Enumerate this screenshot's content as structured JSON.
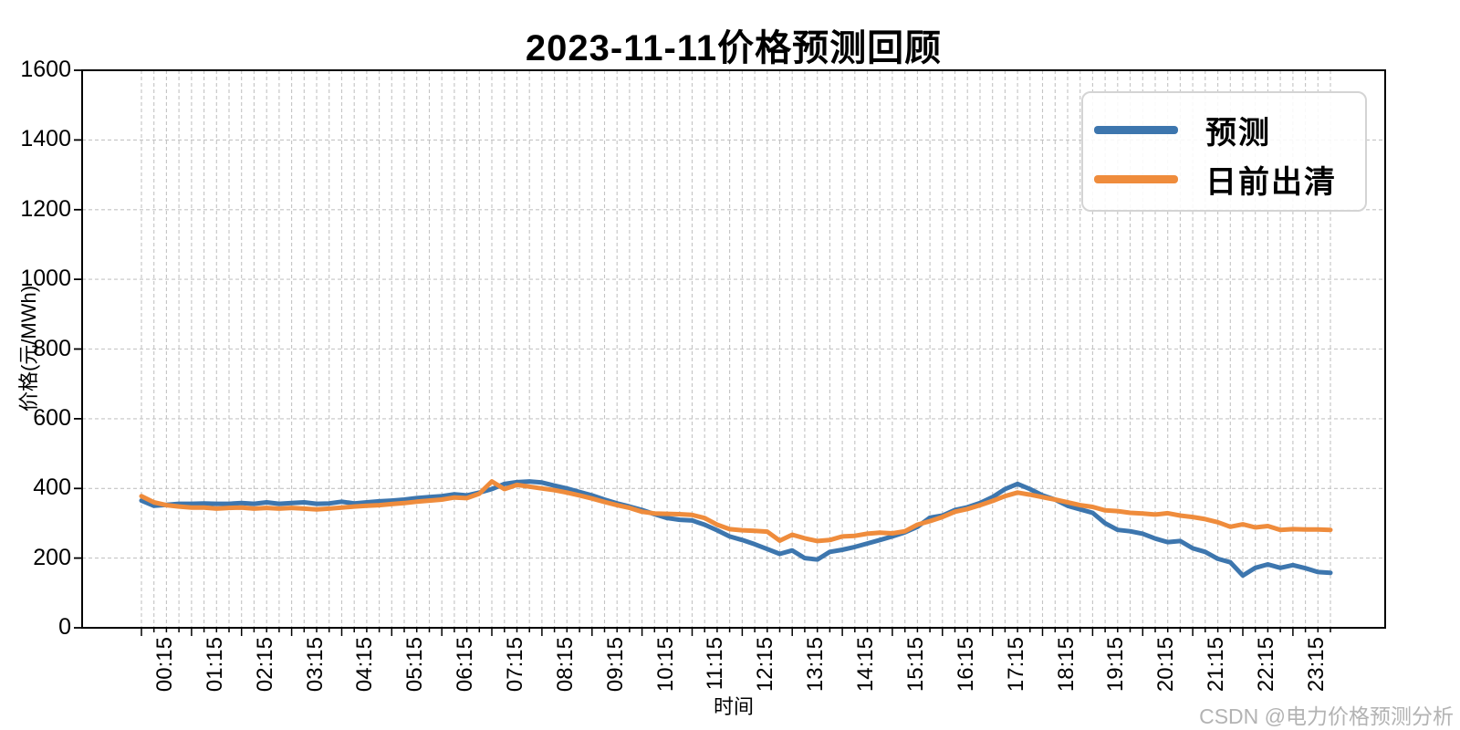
{
  "page": {
    "background": "#ffffff"
  },
  "watermark": {
    "text": "CSDN @电力价格预测分析",
    "color": "#b3b3b3"
  },
  "chart_data": {
    "type": "line",
    "title": "2023-11-11价格预测回顾",
    "xlabel": "时间",
    "ylabel": "价格(元/MWh)",
    "ylim": [
      0,
      1600
    ],
    "yticks": [
      0,
      200,
      400,
      600,
      800,
      1000,
      1200,
      1400,
      1600
    ],
    "grid": true,
    "grid_style": "dashed",
    "grid_color": "#c4c4c4",
    "spine_color": "#000000",
    "legend_position": "upper right",
    "xtick_every": 4,
    "x": [
      "00:15",
      "00:30",
      "00:45",
      "01:00",
      "01:15",
      "01:30",
      "01:45",
      "02:00",
      "02:15",
      "02:30",
      "02:45",
      "03:00",
      "03:15",
      "03:30",
      "03:45",
      "04:00",
      "04:15",
      "04:30",
      "04:45",
      "05:00",
      "05:15",
      "05:30",
      "05:45",
      "06:00",
      "06:15",
      "06:30",
      "06:45",
      "07:00",
      "07:15",
      "07:30",
      "07:45",
      "08:00",
      "08:15",
      "08:30",
      "08:45",
      "09:00",
      "09:15",
      "09:30",
      "09:45",
      "10:00",
      "10:15",
      "10:30",
      "10:45",
      "11:00",
      "11:15",
      "11:30",
      "11:45",
      "12:00",
      "12:15",
      "12:30",
      "12:45",
      "13:00",
      "13:15",
      "13:30",
      "13:45",
      "14:00",
      "14:15",
      "14:30",
      "14:45",
      "15:00",
      "15:15",
      "15:30",
      "15:45",
      "16:00",
      "16:15",
      "16:30",
      "16:45",
      "17:00",
      "17:15",
      "17:30",
      "17:45",
      "18:00",
      "18:15",
      "18:30",
      "18:45",
      "19:00",
      "19:15",
      "19:30",
      "19:45",
      "20:00",
      "20:15",
      "20:30",
      "20:45",
      "21:00",
      "21:15",
      "21:30",
      "21:45",
      "22:00",
      "22:15",
      "22:30",
      "22:45",
      "23:00",
      "23:15",
      "23:30",
      "23:45",
      "24:00"
    ],
    "series": [
      {
        "name": "预测",
        "color": "#3d76ae",
        "values": [
          365,
          350,
          353,
          356,
          356,
          357,
          356,
          356,
          358,
          356,
          360,
          356,
          358,
          360,
          356,
          357,
          362,
          357,
          360,
          363,
          365,
          368,
          372,
          375,
          378,
          383,
          380,
          388,
          398,
          413,
          418,
          420,
          417,
          408,
          400,
          390,
          380,
          368,
          357,
          348,
          338,
          326,
          315,
          310,
          308,
          296,
          280,
          262,
          252,
          240,
          226,
          212,
          222,
          200,
          196,
          218,
          224,
          232,
          242,
          252,
          262,
          274,
          290,
          316,
          322,
          338,
          346,
          358,
          375,
          398,
          413,
          398,
          380,
          368,
          350,
          340,
          330,
          300,
          281,
          277,
          270,
          256,
          246,
          249,
          228,
          218,
          198,
          188,
          150,
          172,
          182,
          172,
          180,
          171,
          160,
          158
        ]
      },
      {
        "name": "日前出清",
        "color": "#ef8c3c",
        "values": [
          378,
          360,
          352,
          348,
          345,
          345,
          342,
          344,
          345,
          342,
          344,
          342,
          344,
          342,
          340,
          342,
          345,
          348,
          350,
          352,
          355,
          358,
          362,
          365,
          368,
          374,
          372,
          385,
          420,
          398,
          410,
          405,
          400,
          395,
          388,
          380,
          371,
          361,
          352,
          344,
          333,
          328,
          327,
          326,
          324,
          315,
          296,
          283,
          280,
          278,
          276,
          250,
          267,
          257,
          249,
          252,
          262,
          264,
          270,
          273,
          271,
          277,
          296,
          306,
          318,
          333,
          341,
          352,
          364,
          378,
          388,
          382,
          375,
          368,
          360,
          352,
          347,
          337,
          335,
          330,
          328,
          325,
          329,
          322,
          318,
          312,
          303,
          290,
          297,
          288,
          292,
          281,
          283,
          282,
          282,
          281
        ]
      }
    ]
  }
}
